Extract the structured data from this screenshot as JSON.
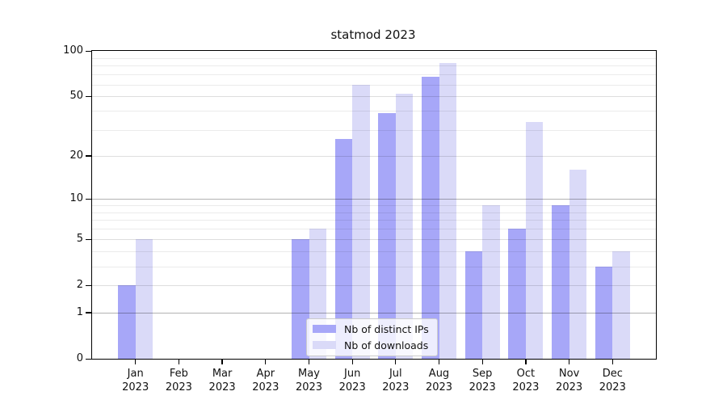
{
  "title": "statmod 2023",
  "chart_data": {
    "type": "bar",
    "title": "statmod 2023",
    "yscale": "log1p",
    "ylim": [
      0,
      100
    ],
    "yticks": [
      0,
      1,
      2,
      5,
      10,
      20,
      50,
      100
    ],
    "minor_gridlines": [
      3,
      4,
      6,
      7,
      8,
      9,
      30,
      40,
      60,
      70,
      80,
      90
    ],
    "decade_gridlines": [
      1,
      10
    ],
    "categories": [
      "Jan",
      "Feb",
      "Mar",
      "Apr",
      "May",
      "Jun",
      "Jul",
      "Aug",
      "Sep",
      "Oct",
      "Nov",
      "Dec"
    ],
    "year_label": "2023",
    "series": [
      {
        "name": "Nb of distinct IPs",
        "color": "#a7a7f8",
        "values": [
          2,
          0,
          0,
          0,
          5,
          26,
          39,
          68,
          4,
          6,
          9,
          3
        ]
      },
      {
        "name": "Nb of downloads",
        "color": "#dadaf8",
        "values": [
          5,
          0,
          0,
          0,
          6,
          60,
          52,
          83,
          9,
          34,
          16,
          4
        ]
      }
    ],
    "grid": true,
    "legend_position": "lower center"
  }
}
